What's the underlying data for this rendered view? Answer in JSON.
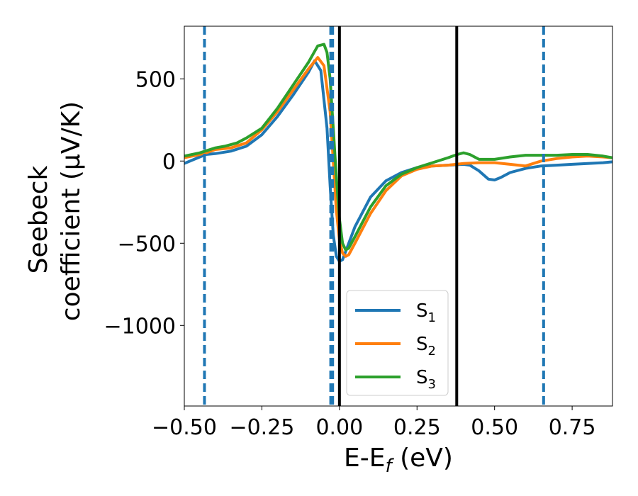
{
  "chart_data": {
    "type": "line",
    "xlabel": "E-E",
    "xlabel_sub": "f",
    "xlabel_suffix": " (eV)",
    "ylabel_line1": "Seebeck",
    "ylabel_line2": "coefficient  (μV/K)",
    "xlim": [
      -0.5,
      0.88
    ],
    "ylim": [
      -1490,
      820
    ],
    "xticks": [
      -0.5,
      -0.25,
      0.0,
      0.25,
      0.5,
      0.75
    ],
    "xtick_labels": [
      "−0.50",
      "−0.25",
      "0.00",
      "0.25",
      "0.50",
      "0.75"
    ],
    "yticks": [
      500,
      0,
      -500,
      -1000
    ],
    "ytick_labels": [
      "500",
      "0",
      "−500",
      "−1000"
    ],
    "grid": false,
    "legend_position": "lower-center",
    "series": [
      {
        "name": "S",
        "name_sub": "1",
        "color": "#1f77b4",
        "x": [
          -0.5,
          -0.45,
          -0.43,
          -0.4,
          -0.35,
          -0.3,
          -0.25,
          -0.2,
          -0.15,
          -0.1,
          -0.08,
          -0.06,
          -0.04,
          -0.03,
          -0.02,
          -0.01,
          0.0,
          0.01,
          0.02,
          0.05,
          0.1,
          0.15,
          0.2,
          0.25,
          0.3,
          0.35,
          0.4,
          0.42,
          0.45,
          0.48,
          0.5,
          0.52,
          0.55,
          0.6,
          0.65,
          0.7,
          0.75,
          0.8,
          0.85,
          0.88
        ],
        "y": [
          -15,
          25,
          40,
          45,
          60,
          90,
          160,
          270,
          400,
          540,
          610,
          550,
          200,
          -150,
          -450,
          -580,
          -610,
          -600,
          -550,
          -400,
          -220,
          -120,
          -70,
          -40,
          -30,
          -25,
          -20,
          -25,
          -60,
          -110,
          -115,
          -100,
          -70,
          -45,
          -30,
          -25,
          -20,
          -15,
          -10,
          -5
        ]
      },
      {
        "name": "S",
        "name_sub": "2",
        "color": "#ff7f0e",
        "x": [
          -0.5,
          -0.45,
          -0.43,
          -0.4,
          -0.35,
          -0.3,
          -0.25,
          -0.2,
          -0.15,
          -0.1,
          -0.07,
          -0.05,
          -0.03,
          -0.02,
          -0.01,
          0.0,
          0.01,
          0.02,
          0.03,
          0.05,
          0.1,
          0.15,
          0.2,
          0.25,
          0.3,
          0.35,
          0.4,
          0.45,
          0.5,
          0.55,
          0.6,
          0.65,
          0.7,
          0.75,
          0.8,
          0.85,
          0.88
        ],
        "y": [
          20,
          40,
          50,
          70,
          80,
          110,
          190,
          300,
          430,
          560,
          630,
          580,
          300,
          0,
          -300,
          -480,
          -560,
          -580,
          -570,
          -500,
          -320,
          -180,
          -90,
          -50,
          -30,
          -25,
          -15,
          -10,
          -10,
          -20,
          -30,
          0,
          15,
          25,
          30,
          25,
          20
        ]
      },
      {
        "name": "S",
        "name_sub": "3",
        "color": "#2ca02c",
        "x": [
          -0.5,
          -0.45,
          -0.4,
          -0.37,
          -0.33,
          -0.3,
          -0.25,
          -0.2,
          -0.15,
          -0.1,
          -0.07,
          -0.05,
          -0.04,
          -0.03,
          -0.02,
          -0.01,
          0.0,
          0.01,
          0.02,
          0.03,
          0.05,
          0.1,
          0.15,
          0.2,
          0.25,
          0.3,
          0.35,
          0.38,
          0.4,
          0.42,
          0.45,
          0.5,
          0.55,
          0.6,
          0.65,
          0.7,
          0.75,
          0.8,
          0.85,
          0.88
        ],
        "y": [
          30,
          50,
          80,
          90,
          110,
          140,
          200,
          320,
          460,
          600,
          700,
          710,
          660,
          500,
          200,
          -100,
          -350,
          -500,
          -540,
          -530,
          -460,
          -280,
          -150,
          -80,
          -40,
          -10,
          20,
          40,
          50,
          40,
          10,
          10,
          25,
          35,
          35,
          35,
          40,
          40,
          30,
          20
        ]
      }
    ],
    "vlines": [
      {
        "x": -0.435,
        "color": "#1f77b4",
        "style": "dashed"
      },
      {
        "x": -0.028,
        "color": "#1f77b4",
        "style": "dashed"
      },
      {
        "x": -0.022,
        "color": "#1f77b4",
        "style": "dashed"
      },
      {
        "x": 0.658,
        "color": "#1f77b4",
        "style": "dashed"
      },
      {
        "x": 0.0,
        "color": "#000000",
        "style": "solid"
      },
      {
        "x": 0.378,
        "color": "#000000",
        "style": "solid"
      }
    ]
  }
}
